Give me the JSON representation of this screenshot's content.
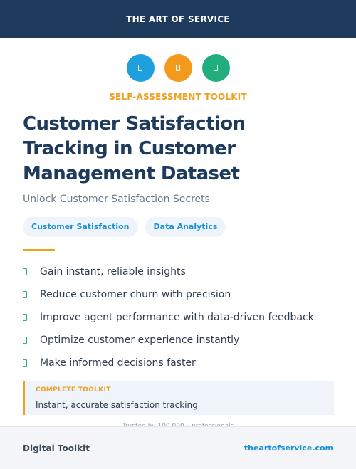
{
  "header": {
    "brand": "THE ART OF SERVICE"
  },
  "icons": [
    {
      "name": "document-icon",
      "color": "#1ea0de"
    },
    {
      "name": "document-icon",
      "color": "#f39a1c"
    },
    {
      "name": "document-icon",
      "color": "#22ad7d"
    }
  ],
  "eyebrow": "SELF-ASSESSMENT TOOLKIT",
  "title": "Customer Satisfaction Tracking in Customer Management Dataset",
  "subtitle": "Unlock Customer Satisfaction Secrets",
  "tags": [
    "Customer Satisfaction",
    "Data Analytics"
  ],
  "benefits": [
    "Gain instant, reliable insights",
    "Reduce customer churn with precision",
    "Improve agent performance with data-driven feedback",
    "Optimize customer experience instantly",
    "Make informed decisions faster"
  ],
  "callout": {
    "label": "COMPLETE TOOLKIT",
    "text": "Instant, accurate satisfaction tracking"
  },
  "trusted": "Trusted by 100,000+ professionals",
  "footer": {
    "left": "Digital Toolkit",
    "right": "theartofservice.com"
  },
  "colors": {
    "navy": "#1e3a5c",
    "accent_orange": "#f0a020",
    "link_blue": "#1790d6",
    "check_green": "#2ab07c"
  }
}
